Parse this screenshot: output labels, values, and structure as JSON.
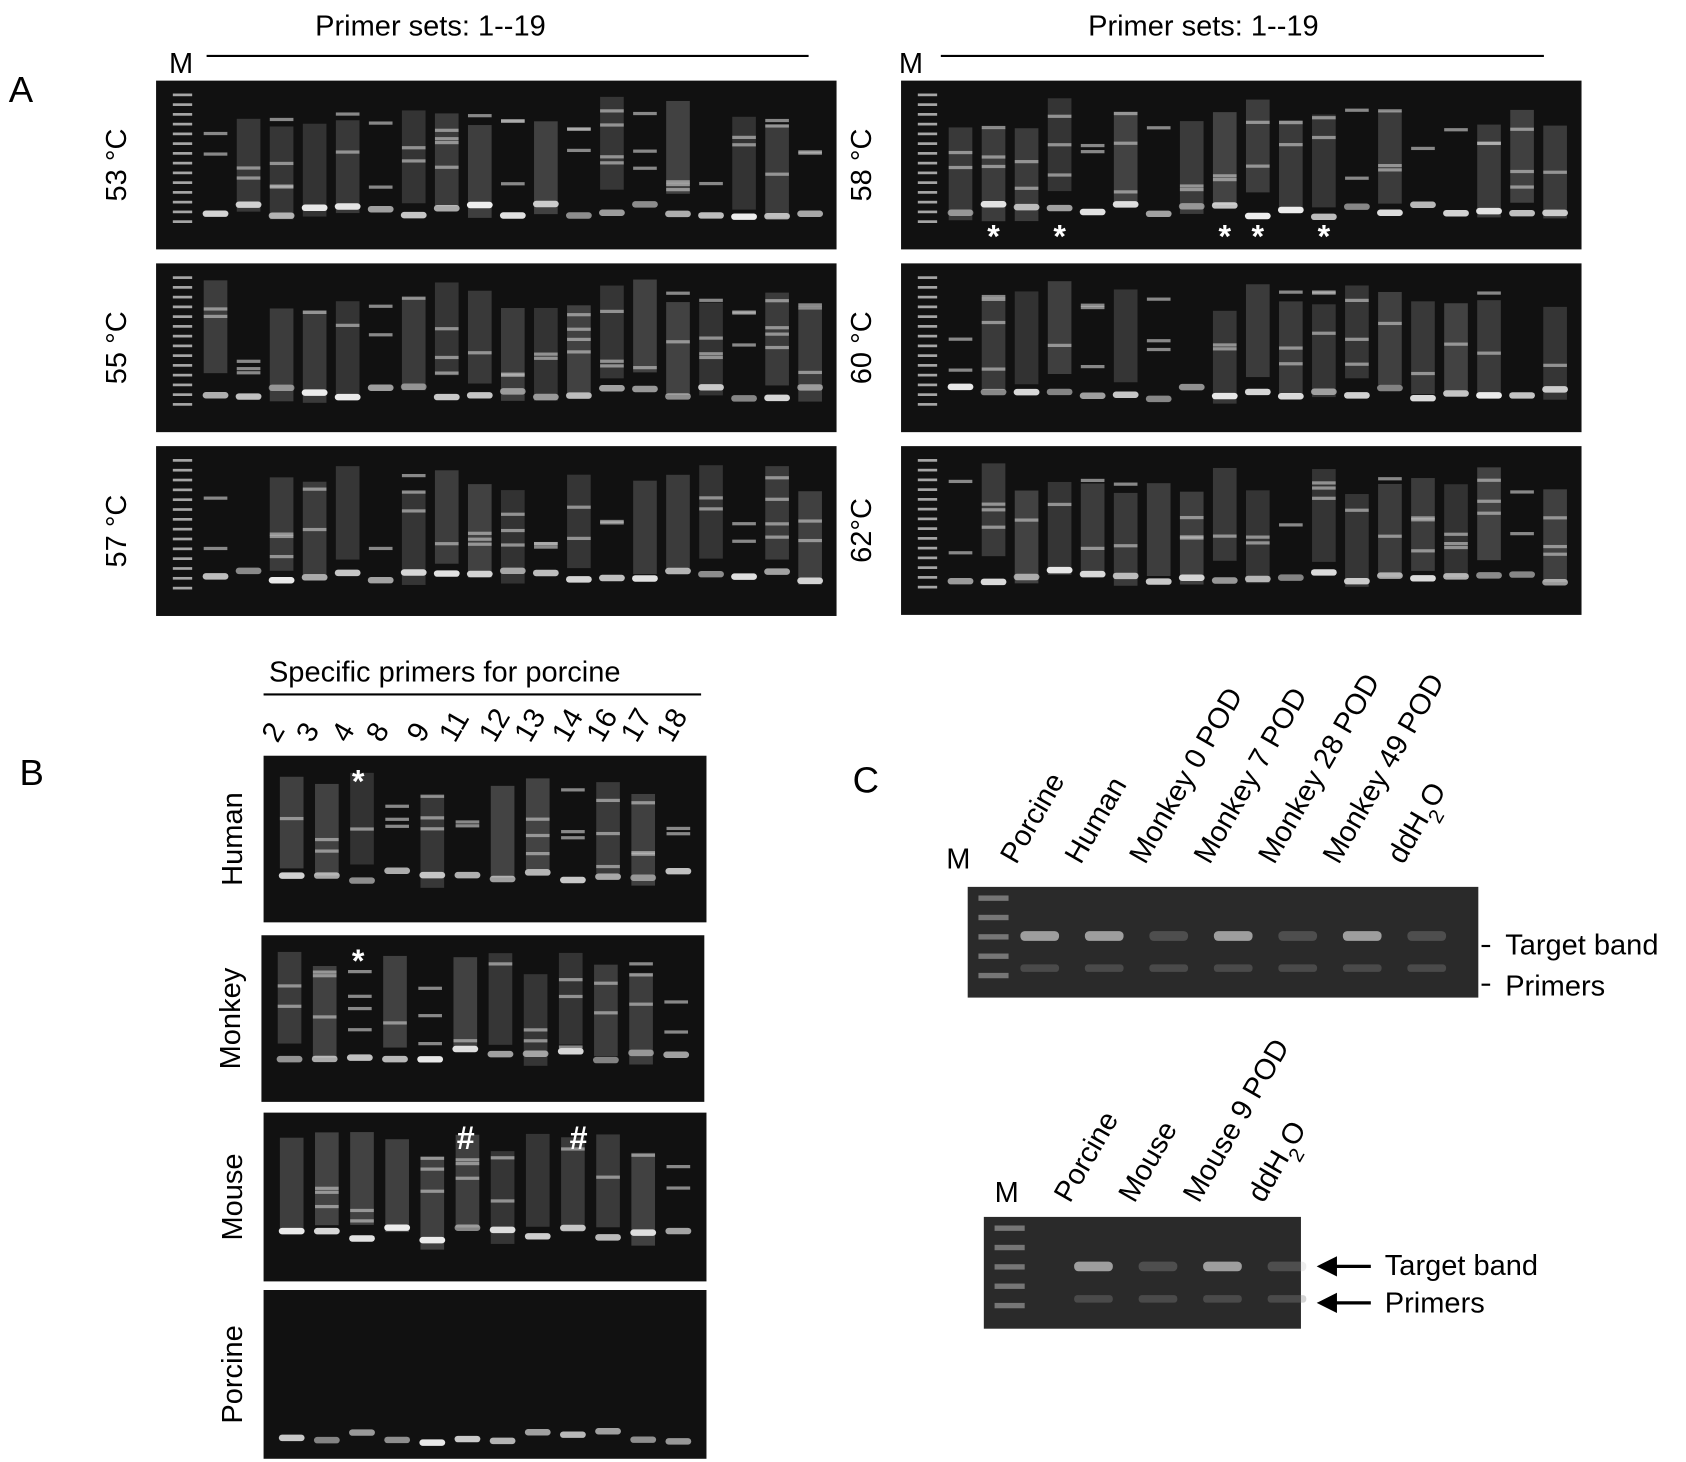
{
  "panel_a": {
    "label": "A",
    "groups": [
      {
        "heading": "Primer sets:  1--19",
        "marker": "M",
        "gels": [
          {
            "temperature": "53 °C"
          },
          {
            "temperature": "55 °C"
          },
          {
            "temperature": "57 °C"
          }
        ]
      },
      {
        "heading": "Primer sets:  1--19",
        "marker": "M",
        "gels": [
          {
            "temperature": "58 °C",
            "annotations": [
              "*",
              "*",
              "*",
              "*",
              "*"
            ]
          },
          {
            "temperature": "60 °C"
          },
          {
            "temperature": "62°C"
          }
        ]
      }
    ]
  },
  "panel_b": {
    "label": "B",
    "heading": "Specific primers for porcine",
    "lanes": [
      "2",
      "3",
      "4",
      "8",
      "9",
      "11",
      "12",
      "13",
      "14",
      "16",
      "17",
      "18"
    ],
    "rows": [
      {
        "name": "Human",
        "annotations": [
          "*"
        ]
      },
      {
        "name": "Monkey",
        "annotations": [
          "*"
        ]
      },
      {
        "name": "Mouse",
        "annotations": [
          "#",
          "#"
        ]
      },
      {
        "name": "Porcine"
      }
    ]
  },
  "panel_c": {
    "label": "C",
    "gels": [
      {
        "marker": "M",
        "lanes": [
          [
            "Porcine"
          ],
          [
            "Human"
          ],
          [
            "Monkey 0 POD"
          ],
          [
            "Monkey 7 POD"
          ],
          [
            "Monkey 28 POD"
          ],
          [
            "Monkey 49 POD"
          ],
          [
            "ddH",
            "2",
            "O"
          ]
        ],
        "target": "Target band",
        "primers": "Primers"
      },
      {
        "marker": "M",
        "lanes": [
          [
            "Porcine"
          ],
          [
            "Mouse"
          ],
          [
            "Mouse 9 POD"
          ],
          [
            "ddH",
            "2",
            "O"
          ]
        ],
        "target": "Target band",
        "primers": "Primers"
      }
    ]
  }
}
